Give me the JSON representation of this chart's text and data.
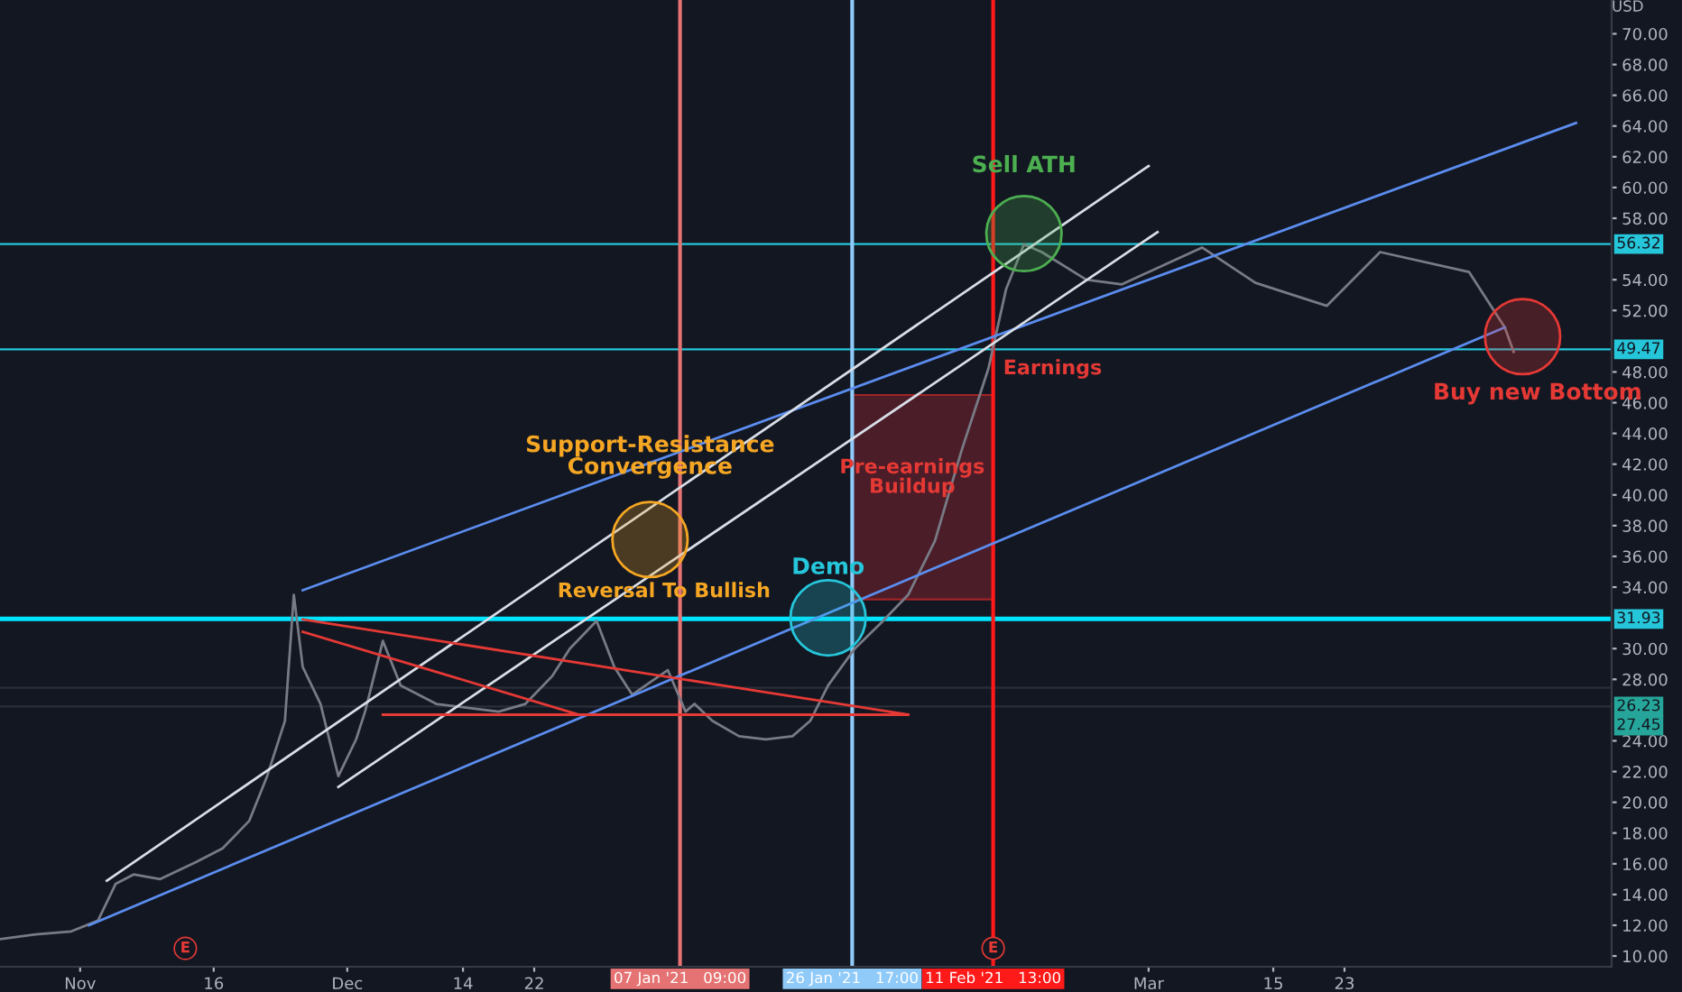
{
  "chart_data": {
    "type": "line",
    "ylabel": "USD",
    "xlim": [
      "2020-10-23",
      "2021-04-22"
    ],
    "xticks": [
      {
        "value": "2020-11-01",
        "label": "Nov"
      },
      {
        "value": "2020-11-16",
        "label": "16"
      },
      {
        "value": "2020-12-01",
        "label": "Dec"
      },
      {
        "value": "2020-12-14",
        "label": "14"
      },
      {
        "value": "2020-12-22",
        "label": "22"
      },
      {
        "value": "2021-03-01",
        "label": "Mar"
      },
      {
        "value": "2021-03-15",
        "label": "15"
      },
      {
        "value": "2021-03-23",
        "label": "23"
      }
    ],
    "ylim": [
      9.3,
      72.2
    ],
    "yticks": [
      {
        "value": 10,
        "label": "10.00"
      },
      {
        "value": 12,
        "label": "12.00"
      },
      {
        "value": 14,
        "label": "14.00"
      },
      {
        "value": 16,
        "label": "16.00"
      },
      {
        "value": 18,
        "label": "18.00"
      },
      {
        "value": 20,
        "label": "20.00"
      },
      {
        "value": 22,
        "label": "22.00"
      },
      {
        "value": 24,
        "label": "24.00"
      },
      {
        "value": 28,
        "label": "28.00"
      },
      {
        "value": 30,
        "label": "30.00"
      },
      {
        "value": 34,
        "label": "34.00"
      },
      {
        "value": 36,
        "label": "36.00"
      },
      {
        "value": 38,
        "label": "38.00"
      },
      {
        "value": 40,
        "label": "40.00"
      },
      {
        "value": 42,
        "label": "42.00"
      },
      {
        "value": 44,
        "label": "44.00"
      },
      {
        "value": 46,
        "label": "46.00"
      },
      {
        "value": 48,
        "label": "48.00"
      },
      {
        "value": 52,
        "label": "52.00"
      },
      {
        "value": 54,
        "label": "54.00"
      },
      {
        "value": 58,
        "label": "58.00"
      },
      {
        "value": 60,
        "label": "60.00"
      },
      {
        "value": 62,
        "label": "62.00"
      },
      {
        "value": 64,
        "label": "64.00"
      },
      {
        "value": 66,
        "label": "66.00"
      },
      {
        "value": 68,
        "label": "68.00"
      },
      {
        "value": 70,
        "label": "70.00"
      }
    ],
    "grid": false,
    "line_style": "solid",
    "series": [
      {
        "color": "#787b86",
        "x": [
          "2020-10-23",
          "2020-10-27",
          "2020-10-31",
          "2020-11-03",
          "2020-11-05",
          "2020-11-07",
          "2020-11-10",
          "2020-11-14",
          "2020-11-17",
          "2020-11-20",
          "2020-11-22",
          "2020-11-24",
          "2020-11-25",
          "2020-11-26",
          "2020-11-28",
          "2020-11-30",
          "2020-12-02",
          "2020-12-03",
          "2020-12-05",
          "2020-12-07",
          "2020-12-11",
          "2020-12-18",
          "2020-12-21",
          "2020-12-24",
          "2020-12-26",
          "2020-12-29",
          "2020-12-31",
          "2021-01-02",
          "2021-01-04",
          "2021-01-06",
          "2021-01-08",
          "2021-01-09",
          "2021-01-11",
          "2021-01-14",
          "2021-01-17",
          "2021-01-20",
          "2021-01-22",
          "2021-01-24",
          "2021-01-27",
          "2021-01-30",
          "2021-02-02",
          "2021-02-05",
          "2021-02-08",
          "2021-02-11",
          "2021-02-13",
          "2021-02-15",
          "2021-02-17",
          "2021-02-22",
          "2021-02-26",
          "2021-03-07",
          "2021-03-13",
          "2021-03-21",
          "2021-03-27",
          "2021-04-06",
          "2021-04-10",
          "2021-04-11"
        ],
        "values": [
          11.1,
          11.4,
          11.6,
          12.3,
          14.7,
          15.3,
          15.0,
          16.1,
          17.0,
          18.8,
          21.7,
          25.3,
          33.5,
          28.8,
          26.4,
          21.7,
          24.1,
          25.9,
          30.5,
          27.6,
          26.4,
          25.9,
          26.4,
          28.2,
          30.0,
          31.8,
          28.8,
          27.0,
          27.8,
          28.6,
          25.9,
          26.4,
          25.3,
          24.3,
          24.1,
          24.3,
          25.3,
          27.6,
          30.0,
          31.7,
          33.5,
          37.0,
          42.9,
          48.2,
          53.4,
          56.3,
          55.8,
          54.0,
          53.7,
          56.1,
          53.8,
          52.3,
          55.8,
          54.5,
          50.9,
          49.3
        ]
      },
      {
        "type": "line",
        "color": "#5b8def",
        "x": [
          "2020-11-26",
          "2021-04-18"
        ],
        "values": [
          33.8,
          64.2
        ]
      },
      {
        "type": "line",
        "color": "#5b8def",
        "x": [
          "2020-11-02",
          "2021-04-10"
        ],
        "values": [
          12.0,
          50.9
        ]
      },
      {
        "type": "line",
        "color": "#d8dde6",
        "x": [
          "2020-11-04",
          "2021-03-01"
        ],
        "values": [
          14.9,
          61.4
        ]
      },
      {
        "type": "line",
        "color": "#d8dde6",
        "x": [
          "2020-11-30",
          "2021-03-02"
        ],
        "values": [
          21.0,
          57.1
        ]
      },
      {
        "type": "line",
        "color": "#e53935",
        "x": [
          "2020-11-26",
          "2021-02-02"
        ],
        "values": [
          31.9,
          25.7
        ]
      },
      {
        "type": "line",
        "color": "#e53935",
        "x": [
          "2020-11-26",
          "2020-12-27"
        ],
        "values": [
          31.1,
          25.7
        ]
      },
      {
        "type": "line",
        "color": "#e53935",
        "x": [
          "2020-12-05",
          "2021-02-02"
        ],
        "values": [
          25.7,
          25.7
        ]
      },
      {
        "type": "bar",
        "color": "#5a1f2a",
        "x": [
          "2021-02-03T15:00"
        ],
        "base": [
          33.2
        ],
        "values": [
          13.3
        ]
      },
      {
        "type": "scatter",
        "x": [
          "2021-01-04",
          "2021-01-24",
          "2021-02-15",
          "2021-04-12"
        ],
        "values": [
          37.1,
          32.0,
          57.0,
          50.3
        ],
        "colors": [
          "#f5a623",
          "#26c6da",
          "#4caf50",
          "#e53935"
        ]
      }
    ],
    "ref_lines": [
      {
        "axis": "y",
        "value": 56.32,
        "label": "56.32",
        "color": "#26c6da"
      },
      {
        "axis": "y",
        "value": 49.47,
        "label": "49.47",
        "color": "#26c6da"
      },
      {
        "axis": "y",
        "value": 31.93,
        "label": "31.93",
        "color": "#00e5ff"
      },
      {
        "axis": "y",
        "value": 26.23,
        "label": "26.23",
        "color": "#2a2e39"
      },
      {
        "axis": "y",
        "value": 27.45,
        "label": "27.45",
        "color": "#2a2e39"
      },
      {
        "axis": "x",
        "value": "2021-01-07T09:00",
        "label": "07 Jan '21   09:00",
        "color": "#e57373"
      },
      {
        "axis": "x",
        "value": "2021-01-26T17:00",
        "label": "26 Jan '21   17:00",
        "color": "#90caf9"
      },
      {
        "axis": "x",
        "value": "2021-02-11T13:00",
        "label": "11 Feb '21   13:00",
        "color": "#ff1a1a"
      }
    ],
    "annotations": [
      {
        "text": "Support-Resistance\nConvergence",
        "x": "2021-01-04",
        "y": 37.1
      },
      "Reversal To Bullish",
      {
        "text": "Demo",
        "x": "2021-01-24",
        "y": 32.0
      },
      "Pre-earnings\nBuildup",
      {
        "text": "Earnings",
        "x": "2021-02-11T13:00",
        "y": 48.2
      },
      {
        "text": "Sell ATH",
        "x": "2021-02-15",
        "y": 57.0
      },
      "Buy new Bottom",
      "E",
      {
        "text": "E",
        "x": "2021-02-11T13:00",
        "y": 10.5
      }
    ]
  }
}
